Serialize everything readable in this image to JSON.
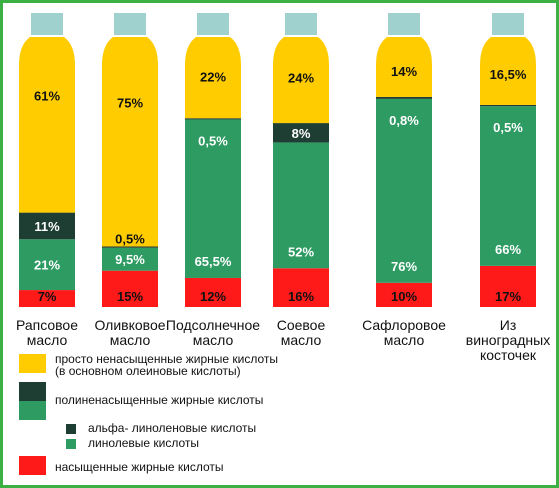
{
  "colors": {
    "mono": "#ffcc00",
    "alpha": "#1e3d33",
    "linoleic": "#2e9b63",
    "saturated": "#ff1a1a",
    "cap": "#9fd2cf",
    "frame": "#3cb043"
  },
  "chart_data": {
    "type": "bar",
    "stacked": true,
    "categories": [
      "Рапсовое масло",
      "Оливковое масло",
      "Подсолнечное масло",
      "Соевое масло",
      "Сафлоровое масло",
      "Из виноградных косточек"
    ],
    "category_lines": [
      [
        "Рапсовое",
        "масло"
      ],
      [
        "Оливковое",
        "масло"
      ],
      [
        "Подсолнечное",
        "масло"
      ],
      [
        "Соевое",
        "масло"
      ],
      [
        "Сафлоровое",
        "масло"
      ],
      [
        "Из",
        "виноградных",
        "косточек"
      ]
    ],
    "series": [
      {
        "key": "saturated",
        "values": [
          7,
          15,
          12,
          16,
          10,
          17
        ],
        "labels": [
          "7%",
          "15%",
          "12%",
          "16%",
          "10%",
          "17%"
        ]
      },
      {
        "key": "linoleic",
        "values": [
          21,
          9.5,
          65.5,
          52,
          76,
          66
        ],
        "labels": [
          "21%",
          "9,5%",
          "65,5%",
          "52%",
          "76%",
          "66%"
        ]
      },
      {
        "key": "alpha",
        "values": [
          11,
          0.5,
          0.5,
          8,
          0.8,
          0.5
        ],
        "labels": [
          "11%",
          "0,5%",
          "0,5%",
          "8%",
          "0,8%",
          "0,5%"
        ]
      },
      {
        "key": "mono",
        "values": [
          61,
          75,
          22,
          24,
          14,
          16.5
        ],
        "labels": [
          "61%",
          "75%",
          "22%",
          "24%",
          "14%",
          "16,5%"
        ]
      }
    ]
  },
  "legend": {
    "mono_line1": "просто ненасыщенные жирные кислоты",
    "mono_line2": "(в основном олеиновые кислоты)",
    "poly": "полиненасыщенные жирные кислоты",
    "alpha": "альфа- линоленовые кислоты",
    "linoleic": "линолевые кислоты",
    "saturated": "насыщенные жирные кислоты"
  }
}
